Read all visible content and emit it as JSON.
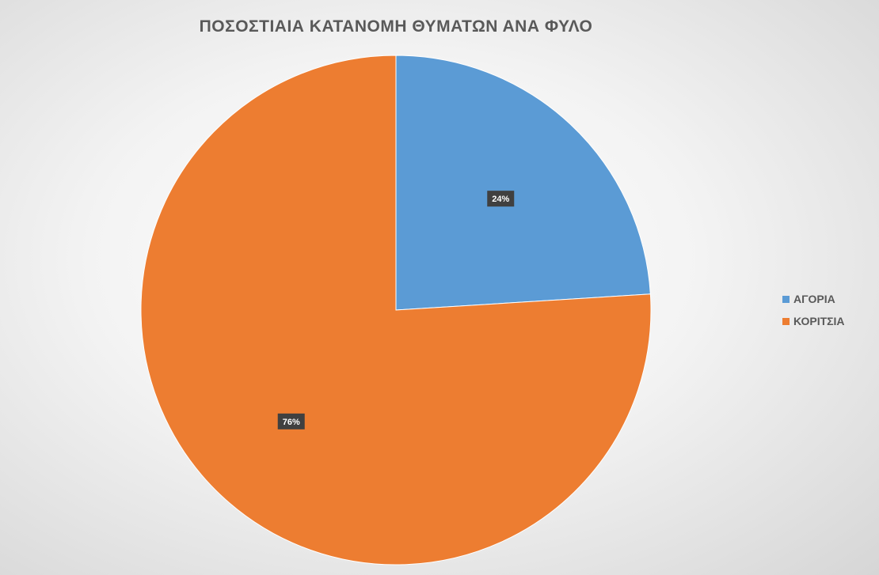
{
  "chart_data": {
    "type": "pie",
    "title": "ΠΟΣΟΣΤΙΑΙΑ ΚΑΤΑΝΟΜΗ ΘΥΜΑΤΩΝ ΑΝΑ ΦΥΛΟ",
    "categories": [
      "ΑΓΟΡΙΑ",
      "ΚΟΡΙΤΣΙΑ"
    ],
    "values": [
      24,
      76
    ],
    "data_labels": [
      "24%",
      "76%"
    ],
    "colors": [
      "#5b9bd5",
      "#ed7d31"
    ],
    "legend_position": "right"
  }
}
